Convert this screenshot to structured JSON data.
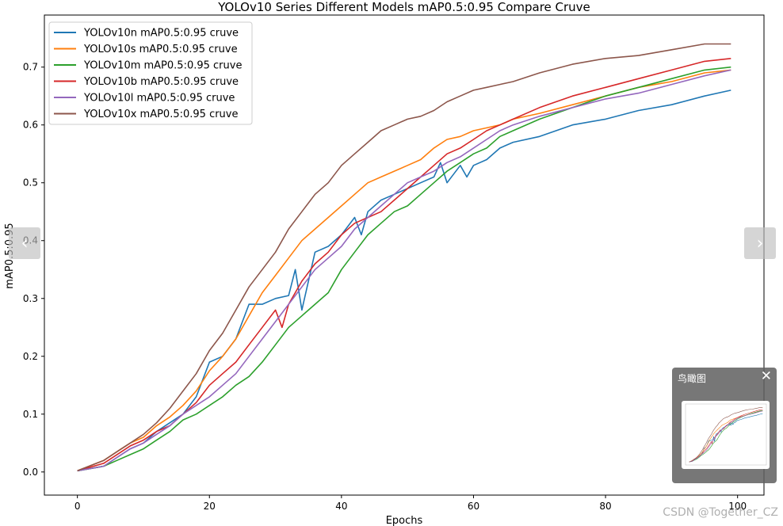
{
  "chart_data": {
    "type": "line",
    "title": "YOLOv10 Series Different Models mAP0.5:0.95 Compare Cruve",
    "xlabel": "Epochs",
    "ylabel": "mAP0.5:0.95",
    "xlim": [
      -5,
      104
    ],
    "ylim": [
      -0.04,
      0.79
    ],
    "xticks": [
      0,
      20,
      40,
      60,
      80,
      100
    ],
    "yticks": [
      0.0,
      0.1,
      0.2,
      0.3,
      0.4,
      0.5,
      0.6,
      0.7
    ],
    "ytick_labels": [
      "0.0",
      "0.1",
      "0.2",
      "0.3",
      "0.4",
      "0.5",
      "0.6",
      "0.7"
    ],
    "grid": false,
    "legend_position": "top-left",
    "series": [
      {
        "name": "YOLOv10n mAP0.5:0.95 cruve",
        "color": "#1f77b4",
        "x": [
          0,
          4,
          6,
          8,
          10,
          12,
          14,
          16,
          18,
          20,
          22,
          24,
          26,
          28,
          30,
          32,
          33,
          34,
          36,
          38,
          40,
          42,
          43,
          44,
          46,
          48,
          50,
          52,
          54,
          55,
          56,
          58,
          59,
          60,
          62,
          64,
          66,
          70,
          75,
          80,
          85,
          90,
          95,
          99
        ],
        "y": [
          0.002,
          0.01,
          0.025,
          0.04,
          0.05,
          0.07,
          0.085,
          0.1,
          0.13,
          0.19,
          0.2,
          0.23,
          0.29,
          0.29,
          0.3,
          0.305,
          0.35,
          0.28,
          0.38,
          0.39,
          0.41,
          0.44,
          0.41,
          0.45,
          0.47,
          0.48,
          0.49,
          0.5,
          0.51,
          0.535,
          0.5,
          0.53,
          0.51,
          0.53,
          0.54,
          0.56,
          0.57,
          0.58,
          0.6,
          0.61,
          0.625,
          0.635,
          0.65,
          0.66
        ]
      },
      {
        "name": "YOLOv10s mAP0.5:0.95 cruve",
        "color": "#ff7f0e",
        "x": [
          0,
          4,
          6,
          8,
          10,
          12,
          14,
          16,
          18,
          20,
          22,
          24,
          26,
          28,
          30,
          32,
          34,
          36,
          38,
          40,
          42,
          44,
          46,
          48,
          50,
          52,
          54,
          56,
          58,
          60,
          62,
          64,
          66,
          70,
          75,
          80,
          85,
          90,
          95,
          99
        ],
        "y": [
          0.002,
          0.02,
          0.035,
          0.05,
          0.06,
          0.08,
          0.095,
          0.115,
          0.14,
          0.175,
          0.2,
          0.23,
          0.27,
          0.31,
          0.34,
          0.37,
          0.4,
          0.42,
          0.44,
          0.46,
          0.48,
          0.5,
          0.51,
          0.52,
          0.53,
          0.54,
          0.56,
          0.575,
          0.58,
          0.59,
          0.595,
          0.6,
          0.61,
          0.62,
          0.635,
          0.65,
          0.665,
          0.675,
          0.69,
          0.695
        ]
      },
      {
        "name": "YOLOv10m mAP0.5:0.95 cruve",
        "color": "#2ca02c",
        "x": [
          0,
          4,
          6,
          8,
          10,
          12,
          14,
          16,
          18,
          20,
          22,
          24,
          26,
          28,
          30,
          32,
          34,
          36,
          38,
          40,
          42,
          44,
          46,
          48,
          50,
          52,
          54,
          56,
          58,
          60,
          62,
          64,
          66,
          70,
          75,
          80,
          85,
          90,
          95,
          99
        ],
        "y": [
          0.002,
          0.01,
          0.02,
          0.03,
          0.04,
          0.055,
          0.07,
          0.09,
          0.1,
          0.115,
          0.13,
          0.15,
          0.165,
          0.19,
          0.22,
          0.25,
          0.27,
          0.29,
          0.31,
          0.35,
          0.38,
          0.41,
          0.43,
          0.45,
          0.46,
          0.48,
          0.5,
          0.52,
          0.535,
          0.55,
          0.56,
          0.58,
          0.59,
          0.61,
          0.63,
          0.65,
          0.665,
          0.68,
          0.695,
          0.7
        ]
      },
      {
        "name": "YOLOv10b mAP0.5:0.95 cruve",
        "color": "#d62728",
        "x": [
          0,
          4,
          6,
          8,
          10,
          12,
          14,
          16,
          18,
          20,
          22,
          24,
          26,
          28,
          30,
          31,
          32,
          34,
          36,
          38,
          40,
          42,
          44,
          46,
          48,
          50,
          52,
          54,
          56,
          58,
          60,
          62,
          64,
          66,
          70,
          75,
          80,
          85,
          90,
          95,
          99
        ],
        "y": [
          0.002,
          0.015,
          0.03,
          0.045,
          0.055,
          0.07,
          0.08,
          0.1,
          0.12,
          0.15,
          0.17,
          0.19,
          0.22,
          0.25,
          0.28,
          0.25,
          0.29,
          0.33,
          0.36,
          0.38,
          0.41,
          0.43,
          0.44,
          0.45,
          0.47,
          0.49,
          0.51,
          0.53,
          0.55,
          0.56,
          0.575,
          0.59,
          0.6,
          0.61,
          0.63,
          0.65,
          0.665,
          0.68,
          0.695,
          0.71,
          0.715
        ]
      },
      {
        "name": "YOLOv10l mAP0.5:0.95 cruve",
        "color": "#9467bd",
        "x": [
          0,
          4,
          6,
          8,
          10,
          12,
          14,
          16,
          18,
          20,
          22,
          24,
          26,
          28,
          30,
          32,
          34,
          36,
          38,
          40,
          42,
          44,
          46,
          48,
          50,
          52,
          54,
          56,
          58,
          60,
          62,
          64,
          66,
          70,
          75,
          80,
          85,
          90,
          95,
          99
        ],
        "y": [
          0.002,
          0.01,
          0.025,
          0.04,
          0.05,
          0.065,
          0.08,
          0.1,
          0.115,
          0.13,
          0.15,
          0.17,
          0.2,
          0.23,
          0.26,
          0.29,
          0.32,
          0.35,
          0.37,
          0.39,
          0.42,
          0.44,
          0.46,
          0.48,
          0.5,
          0.51,
          0.52,
          0.535,
          0.545,
          0.56,
          0.575,
          0.59,
          0.6,
          0.615,
          0.63,
          0.645,
          0.655,
          0.67,
          0.685,
          0.695
        ]
      },
      {
        "name": "YOLOv10x mAP0.5:0.95 cruve",
        "color": "#8c564b",
        "x": [
          0,
          4,
          6,
          8,
          10,
          12,
          14,
          16,
          18,
          20,
          22,
          24,
          26,
          28,
          30,
          32,
          34,
          36,
          38,
          40,
          42,
          44,
          46,
          48,
          50,
          52,
          54,
          56,
          58,
          60,
          62,
          64,
          66,
          70,
          75,
          80,
          85,
          90,
          95,
          99
        ],
        "y": [
          0.002,
          0.02,
          0.035,
          0.05,
          0.065,
          0.085,
          0.11,
          0.14,
          0.17,
          0.21,
          0.24,
          0.28,
          0.32,
          0.35,
          0.38,
          0.42,
          0.45,
          0.48,
          0.5,
          0.53,
          0.55,
          0.57,
          0.59,
          0.6,
          0.61,
          0.615,
          0.625,
          0.64,
          0.65,
          0.66,
          0.665,
          0.67,
          0.675,
          0.69,
          0.705,
          0.715,
          0.72,
          0.73,
          0.74,
          0.74
        ]
      }
    ]
  },
  "overview": {
    "title": "鸟瞰图"
  },
  "watermark": "CSDN @Together_CZ",
  "icons": {
    "prev": "chevron-left-icon",
    "next": "chevron-right-icon",
    "close": "close-icon"
  }
}
